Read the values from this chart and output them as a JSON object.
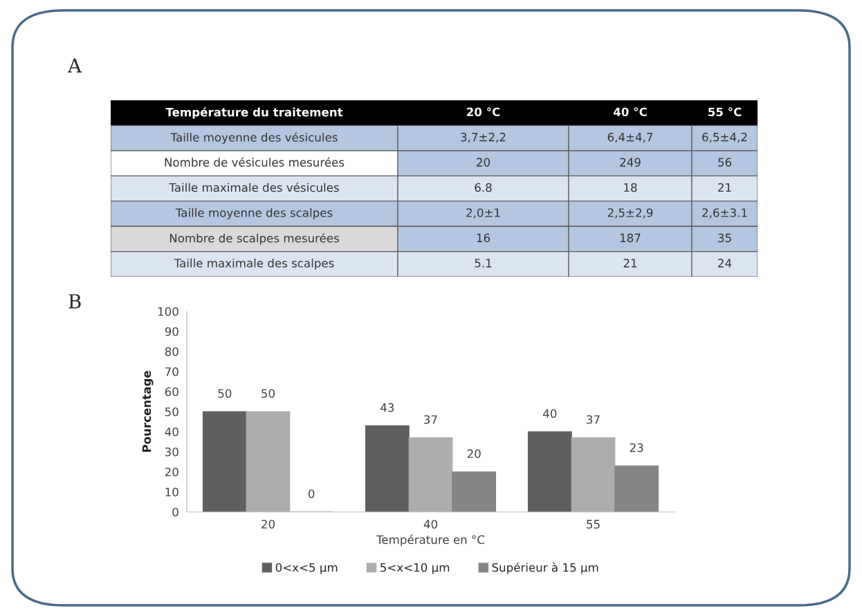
{
  "chart_data": [
    {
      "type": "other",
      "title": "A",
      "annotations": [
        "Température du traitement"
      ],
      "categories": [
        "20 °C",
        "40 °C",
        "55 °C"
      ],
      "y_categories": [
        "Taille moyenne des vésicules",
        "Nombre de vésicules mesurées",
        "Taille maximale des vésicules",
        "Taille moyenne des scalpes",
        "Nombre de scalpes mesurées",
        "Taille maximale des scalpes"
      ],
      "cell_labels": [
        [
          "3,7±2,2",
          "6,4±4,7",
          "6,5±4,2"
        ],
        [
          "20",
          "249",
          "56"
        ],
        [
          "6.8",
          "18",
          "21"
        ],
        [
          "2,0±1",
          "2,5±2,9",
          "2,6±3.1"
        ],
        [
          "16",
          "187",
          "35"
        ],
        [
          "5.1",
          "21",
          "24"
        ]
      ]
    },
    {
      "type": "bar",
      "title": "B",
      "categories": [
        "20",
        "40",
        "55"
      ],
      "xlabel": "Température en °C",
      "ylabel": "Pourcentage",
      "ylim": [
        0,
        100
      ],
      "yticks": [
        0,
        10,
        20,
        30,
        40,
        50,
        60,
        70,
        80,
        90,
        100
      ],
      "grid": false,
      "legend": "bottom",
      "data_labels": true,
      "series": [
        {
          "name": "0<x<5 µm",
          "color": "#5f5f5f",
          "values": [
            50,
            43,
            40
          ]
        },
        {
          "name": "5<x<10 µm",
          "color": "#adadad",
          "values": [
            50,
            37,
            37
          ]
        },
        {
          "name": "Supérieur à 15 µm",
          "color": "#858585",
          "values": [
            0,
            20,
            23
          ]
        }
      ]
    }
  ]
}
